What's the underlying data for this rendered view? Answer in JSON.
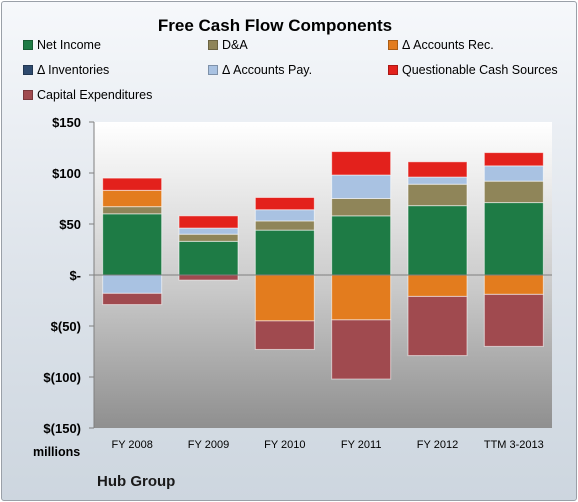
{
  "chart_data": {
    "type": "bar",
    "stacked": true,
    "title": "Free Cash Flow Components",
    "units_label": "millions",
    "categories": [
      "FY 2008",
      "FY 2009",
      "FY 2010",
      "FY 2011",
      "FY 2012",
      "TTM 3-2013"
    ],
    "y_ticks": [
      150,
      100,
      50,
      0,
      -50,
      -100,
      -150
    ],
    "y_tick_labels": [
      "$150",
      "$100",
      "$50",
      "$-",
      "$(50)",
      "$(100)",
      "$(150)"
    ],
    "ylim": [
      -150,
      150
    ],
    "series": [
      {
        "name": "Net Income",
        "color": "#1e7b45",
        "values": [
          60,
          33,
          44,
          58,
          68,
          71
        ]
      },
      {
        "name": "D&A",
        "color": "#8f8559",
        "values": [
          7,
          7,
          9,
          17,
          21,
          21
        ]
      },
      {
        "name": "Δ Accounts Rec.",
        "color": "#e37c1e",
        "values": [
          16,
          0,
          -45,
          -44,
          -21,
          -19
        ]
      },
      {
        "name": "Δ Inventories",
        "color": "#2e4a6e",
        "values": [
          0,
          0,
          0,
          0,
          0,
          0
        ]
      },
      {
        "name": "Δ Accounts Pay.",
        "color": "#a9c2e2",
        "values": [
          -18,
          6,
          11,
          23,
          7,
          15
        ]
      },
      {
        "name": "Questionable Cash Sources",
        "color": "#e3211c",
        "values": [
          12,
          12,
          12,
          23,
          15,
          13
        ]
      },
      {
        "name": "Capital Expenditures",
        "color": "#a04a4f",
        "values": [
          -11,
          -5,
          -28,
          -58,
          -58,
          -51
        ]
      }
    ],
    "legend_position": "top",
    "grid": false
  },
  "footer": {
    "company": "Hub Group"
  }
}
